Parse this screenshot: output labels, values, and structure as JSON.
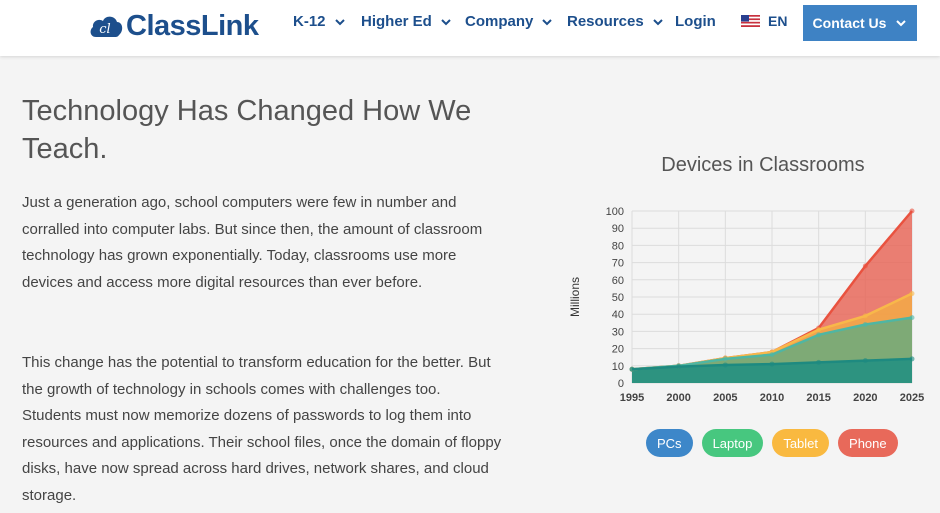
{
  "header": {
    "logo_text": "ClassLink",
    "nav": [
      {
        "label": "K-12",
        "has_menu": true
      },
      {
        "label": "Higher Ed",
        "has_menu": true
      },
      {
        "label": "Company",
        "has_menu": true
      },
      {
        "label": "Resources",
        "has_menu": true
      },
      {
        "label": "Login",
        "has_menu": false
      }
    ],
    "language": "EN",
    "contact_label": "Contact Us",
    "brand_color": "#1d4f8c",
    "contact_color": "#3e82c4"
  },
  "main": {
    "title": "Technology Has Changed How We Teach.",
    "paragraph1": "Just a generation ago, school computers were few in number and corralled into computer labs. But since then, the amount of classroom technology has grown exponentially. Today, classrooms use more devices and access more digital resources than ever before.",
    "paragraph2": "This change has the potential to transform education for the better. But the growth of technology in schools comes with challenges too. Students must now memorize dozens of passwords to log them into resources and applications. Their school files, once the domain of floppy disks, have now spread across hard drives, network shares, and cloud storage."
  },
  "chart_data": {
    "type": "area",
    "title": "Devices in Classrooms",
    "ylabel": "Millions",
    "x": [
      1995,
      2000,
      2005,
      2010,
      2015,
      2020,
      2025
    ],
    "ylim": [
      0,
      100
    ],
    "yticks": [
      0,
      10,
      20,
      30,
      40,
      50,
      60,
      70,
      80,
      90,
      100
    ],
    "stacked": true,
    "series": [
      {
        "name": "PCs",
        "color": "#3d87c9",
        "values": [
          8,
          9.5,
          10.5,
          11,
          12,
          13,
          14
        ]
      },
      {
        "name": "Laptop",
        "color": "#47c77f",
        "values": [
          0,
          0.5,
          3.5,
          5.5,
          16,
          21,
          24
        ]
      },
      {
        "name": "Tablet",
        "color": "#f9b940",
        "values": [
          0,
          0,
          0.5,
          1.5,
          3,
          5,
          14
        ]
      },
      {
        "name": "Phone",
        "color": "#e8695a",
        "values": [
          0,
          0,
          0,
          0,
          1,
          29,
          48
        ]
      }
    ],
    "grid": true,
    "legend": "bottom"
  }
}
